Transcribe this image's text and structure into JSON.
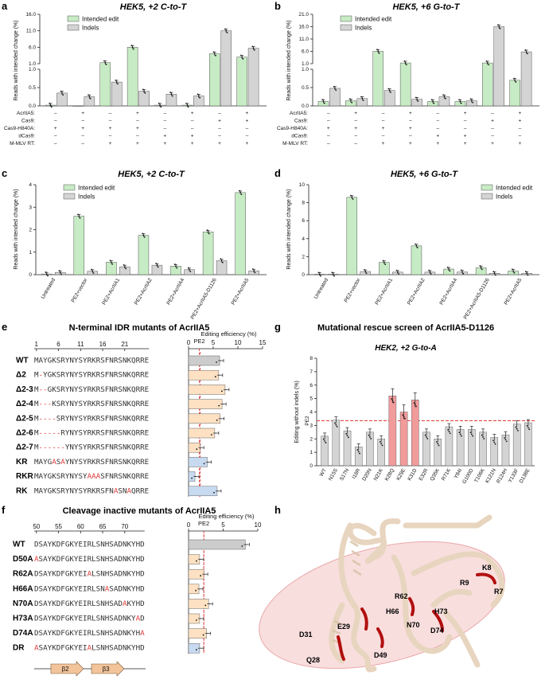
{
  "colors": {
    "green": "#c7ebc4",
    "greenDark": "#9fd69a",
    "gray": "#d4d4d4",
    "orange": "#fde1c2",
    "blue": "#c7daf0",
    "red": "#f29b9b",
    "dashed": "#e23a3a",
    "mut": "#e23a3a"
  },
  "panel_labels": {
    "a": "a",
    "b": "b",
    "c": "c",
    "d": "d",
    "e": "e",
    "f": "f",
    "g": "g",
    "h": "h"
  },
  "row_labels": [
    "AcrIIA5:",
    "Cas9:",
    "Cas9-H840A:",
    "dCas9:",
    "M-MLV RT:"
  ],
  "ylabel_reads": "Reads with intended change (%)",
  "chart_data": [
    {
      "id": "a",
      "type": "bar",
      "title": "HEK5, +2 C-to-T",
      "series": [
        {
          "name": "Intended edit",
          "values": [
            0.02,
            0,
            1.3,
            6.0,
            0.02,
            0.02,
            4.0,
            3.0
          ]
        },
        {
          "name": "Indels",
          "values": [
            0.35,
            0.25,
            0.65,
            0.4,
            0.32,
            0.27,
            11.0,
            5.7
          ]
        }
      ],
      "rows": [
        [
          "–",
          "+",
          "–",
          "+",
          "–",
          "+",
          "–",
          "+"
        ],
        [
          "–",
          "–",
          "–",
          "–",
          "–",
          "–",
          "+",
          "+"
        ],
        [
          "+",
          "+",
          "+",
          "+",
          "–",
          "–",
          "–",
          "–"
        ],
        [
          "–",
          "–",
          "–",
          "–",
          "+",
          "+",
          "–",
          "–"
        ],
        [
          "–",
          "–",
          "+",
          "+",
          "+",
          "+",
          "+",
          "+"
        ]
      ],
      "yticks_low": [
        "0.0",
        "0.5",
        "1.0"
      ],
      "yticks_high": [
        "1.0",
        "6.0",
        "11.0",
        "16.0"
      ]
    },
    {
      "id": "b",
      "type": "bar",
      "title": "HEK5, +6 G-to-T",
      "series": [
        {
          "name": "Intended edit",
          "values": [
            0.12,
            0.14,
            6.0,
            1.3,
            0.12,
            0.12,
            1.3,
            0.7
          ]
        },
        {
          "name": "Indels",
          "values": [
            0.48,
            0.2,
            0.42,
            0.18,
            0.25,
            0.14,
            16.0,
            5.8
          ]
        }
      ],
      "rows": [
        [
          "–",
          "+",
          "–",
          "+",
          "–",
          "+",
          "–",
          "+"
        ],
        [
          "–",
          "–",
          "–",
          "–",
          "–",
          "–",
          "+",
          "+"
        ],
        [
          "+",
          "+",
          "+",
          "+",
          "–",
          "–",
          "–",
          "–"
        ],
        [
          "–",
          "–",
          "–",
          "–",
          "+",
          "+",
          "–",
          "–"
        ],
        [
          "–",
          "–",
          "+",
          "+",
          "+",
          "+",
          "+",
          "+"
        ]
      ],
      "yticks_low": [
        "0.0",
        "0.5",
        "1.0"
      ],
      "yticks_high": [
        "1.0",
        "6.0",
        "11.0",
        "16.0",
        "21.0"
      ]
    },
    {
      "id": "c",
      "type": "bar",
      "title": "HEK5, +2 C-to-T",
      "categories": [
        "Untreated",
        "PE2+vector",
        "PE2+AcrIIA1",
        "PE2+AcrIIA2",
        "PE2+AcrIIA4",
        "PE2+AcrIIA5-D1126",
        "PE2+AcrIIA5"
      ],
      "series": [
        {
          "name": "Intended edit",
          "values": [
            0.03,
            2.6,
            0.55,
            1.75,
            0.38,
            1.9,
            3.65
          ]
        },
        {
          "name": "Indels",
          "values": [
            0.1,
            0.15,
            0.35,
            0.42,
            0.22,
            0.62,
            0.17
          ]
        }
      ],
      "ylim": [
        0,
        4
      ],
      "yticks": [
        "0",
        "1",
        "2",
        "3",
        "4"
      ]
    },
    {
      "id": "d",
      "type": "bar",
      "title": "HEK5, +6 G-to-T",
      "categories": [
        "Untreated",
        "PE2+vector",
        "PE2+AcrIIA1",
        "PE2+AcrIIA2",
        "PE2+AcrIIA4",
        "PE2+AcrIIA5-D1126",
        "PE2+AcrIIA5"
      ],
      "series": [
        {
          "name": "Intended edit",
          "values": [
            0.05,
            8.6,
            1.35,
            3.2,
            0.62,
            0.78,
            0.4
          ]
        },
        {
          "name": "Indels",
          "values": [
            0.05,
            0.35,
            0.28,
            0.28,
            0.3,
            0.15,
            0.15
          ]
        }
      ],
      "ylim": [
        0,
        10
      ],
      "yticks": [
        "0",
        "2",
        "4",
        "6",
        "8",
        "10"
      ]
    },
    {
      "id": "e",
      "type": "bar",
      "title": "N-terminal IDR mutants of AcrIIA5",
      "xlabel": "Editing efficiency (%)",
      "reference": "PE2",
      "reference_value": 2.2,
      "axis_ticks": [
        "0",
        "5",
        "10",
        "15"
      ],
      "seq_ticks": [
        "1",
        "6",
        "11",
        "16",
        "21"
      ],
      "rows": [
        {
          "label": "WT",
          "seq": "MAYGKSRYNYSYRKRSFNRSNKQRRE",
          "red": [],
          "value": 6.3,
          "group": "gray"
        },
        {
          "label": "Δ2",
          "seq": "M-YGKSRYNYSYRKRSFNRSNKQRRE",
          "red": [
            1
          ],
          "value": 6.1,
          "group": "orange"
        },
        {
          "label": "Δ2-3",
          "seq": "M--GKSRYNYSYRKRSFNRSNKQRRE",
          "red": [
            1,
            2
          ],
          "value": 7.4,
          "group": "orange"
        },
        {
          "label": "Δ2-4",
          "seq": "M---KSRYNYSYRKRSFNRSNKQRRE",
          "red": [
            1,
            2,
            3
          ],
          "value": 6.8,
          "group": "orange"
        },
        {
          "label": "Δ2-5",
          "seq": "M----SRYNYSYRKRSFNRSNKQRRE",
          "red": [
            1,
            2,
            3,
            4
          ],
          "value": 6.4,
          "group": "orange"
        },
        {
          "label": "Δ2-6",
          "seq": "M-----RYNYSYRKRSFNRSNKQRRE",
          "red": [
            1,
            2,
            3,
            4,
            5
          ],
          "value": 5.3,
          "group": "orange"
        },
        {
          "label": "Δ2-7",
          "seq": "M------YNYSYRKRSFNRSNKQRRE",
          "red": [
            1,
            2,
            3,
            4,
            5,
            6
          ],
          "value": 2.3,
          "group": "orange"
        },
        {
          "label": "KR",
          "seq": "MAYGASAYNYSYRKRSFNRSNKQRRE",
          "red": [
            4,
            6
          ],
          "value": 3.8,
          "group": "blue"
        },
        {
          "label": "RKR",
          "seq": "MAYGKSRYNYSYAAASFNRSNKQRRE",
          "red": [
            12,
            13,
            14
          ],
          "value": 1.3,
          "group": "blue"
        },
        {
          "label": "RK",
          "seq": "MAYGKSRYNYSYRKRSFNASNAQRRE",
          "red": [
            18,
            21
          ],
          "value": 5.8,
          "group": "blue"
        }
      ]
    },
    {
      "id": "f",
      "type": "bar",
      "title": "Cleavage inactive mutants of AcrIIA5",
      "xlabel": "Editing efficiency (%)",
      "reference": "PE2",
      "reference_value": 2.2,
      "axis_ticks": [
        "0",
        "5",
        "10"
      ],
      "seq_ticks": [
        "50",
        "55",
        "60",
        "65",
        "70"
      ],
      "structure": [
        "β2",
        "β3"
      ],
      "rows": [
        {
          "label": "WT",
          "seq": "DSAYKDFGKYEIRLSNHSADNKYHD",
          "red": [],
          "value": 8.2,
          "group": "gray"
        },
        {
          "label": "D50A",
          "seq": "ASAYKDFGKYEIRLSNHSADNKYHD",
          "red": [
            0
          ],
          "value": 1.6,
          "group": "orange"
        },
        {
          "label": "R62A",
          "seq": "DSAYKDFGKYEIALSNHSADNKYHD",
          "red": [
            12
          ],
          "value": 2.2,
          "group": "orange"
        },
        {
          "label": "H66A",
          "seq": "DSAYKDFGKYEIRLSNASADNKYHD",
          "red": [
            16
          ],
          "value": 1.5,
          "group": "orange"
        },
        {
          "label": "N70A",
          "seq": "DSAYKDFGKYEIRLSNHSADAKYHD",
          "red": [
            20
          ],
          "value": 2.9,
          "group": "orange"
        },
        {
          "label": "H73A",
          "seq": "DSAYKDFGKYEIRLSNHSADNKYAD",
          "red": [
            23
          ],
          "value": 1.6,
          "group": "orange"
        },
        {
          "label": "D74A",
          "seq": "DSAYKDFGKYEIRLSNHSADNKYHA",
          "red": [
            24
          ],
          "value": 2.6,
          "group": "orange"
        },
        {
          "label": "DR",
          "seq": "ASAYKDFGKYEIALSNHSADNKYHD",
          "red": [
            0,
            12
          ],
          "value": 1.6,
          "group": "blue"
        }
      ]
    },
    {
      "id": "g",
      "type": "bar",
      "title": "Mutational rescue screen of AcrIIA5-D1126",
      "subtitle": "HEK2, +2 G-to-A",
      "ylabel": "Editing without indels (%)",
      "reference": "PE2",
      "reference_value": 3.35,
      "ylim": [
        0,
        8
      ],
      "yticks": [
        "0",
        "1",
        "2",
        "3",
        "4",
        "5",
        "6",
        "7",
        "8"
      ],
      "categories": [
        "WT",
        "N15S",
        "S17N",
        "I18R",
        "D20N",
        "N21K",
        "K28Q",
        "K29E",
        "K31D",
        "E32R",
        "Q35K",
        "R71K",
        "Y84I",
        "G100D",
        "T106K",
        "K121N",
        "R124H",
        "Y133F",
        "D138E"
      ],
      "values": [
        2.2,
        3.4,
        2.6,
        1.4,
        2.5,
        2.0,
        5.2,
        4.0,
        4.9,
        2.5,
        2.0,
        2.9,
        2.7,
        2.7,
        2.5,
        2.1,
        2.3,
        3.1,
        3.2
      ],
      "highlighted": [
        "K28Q",
        "K29E",
        "K31D"
      ]
    }
  ],
  "structure_h": {
    "residues": [
      "K8",
      "R9",
      "R7",
      "R62",
      "H66",
      "N70",
      "H73",
      "D74",
      "E29",
      "D31",
      "Q28",
      "D49"
    ]
  }
}
